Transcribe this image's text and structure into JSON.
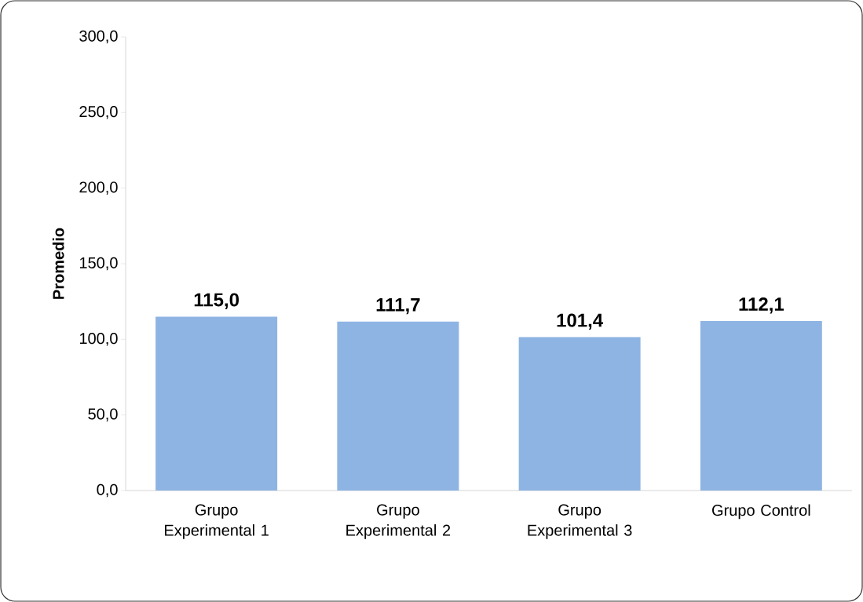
{
  "chart_data": {
    "type": "bar",
    "ylabel": "Promedio",
    "categories": [
      "Grupo Experimental 1",
      "Grupo Experimental 2",
      "Grupo Experimental 3",
      "Grupo Control"
    ],
    "values": [
      115.0,
      111.7,
      101.4,
      112.1
    ],
    "value_labels": [
      "115,0",
      "111,7",
      "101,4",
      "112,1"
    ],
    "color": "#8eb4e3",
    "ylim": [
      0,
      300
    ],
    "yticks": [
      {
        "value": 0,
        "label": "0,0"
      },
      {
        "value": 50,
        "label": "50,0"
      },
      {
        "value": 100,
        "label": "100,0"
      },
      {
        "value": 150,
        "label": "150,0"
      },
      {
        "value": 200,
        "label": "200,0"
      },
      {
        "value": 250,
        "label": "250,0"
      },
      {
        "value": 300,
        "label": "300,0"
      }
    ],
    "grid": false
  }
}
